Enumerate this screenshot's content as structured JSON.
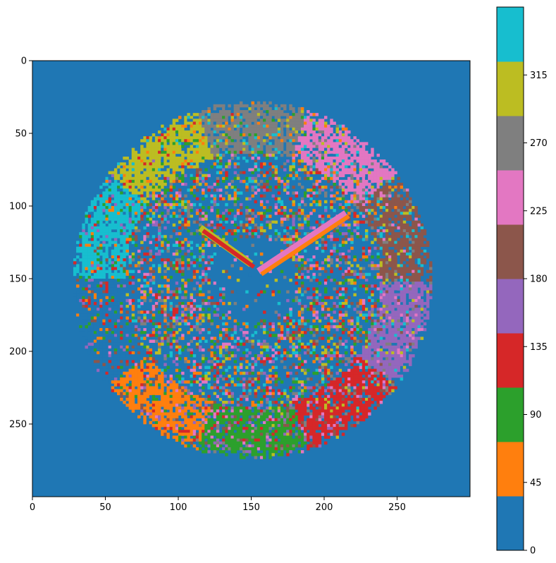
{
  "chart_data": {
    "type": "heatmap",
    "title": "",
    "xlabel": "",
    "ylabel": "",
    "xlim": [
      0,
      300
    ],
    "ylim": [
      300,
      0
    ],
    "x_ticks": [
      0,
      50,
      100,
      150,
      200,
      250
    ],
    "y_ticks": [
      0,
      50,
      100,
      150,
      200,
      250
    ],
    "grid": false,
    "image_description_values": "gradient-orientation map of a circular clock face (0-360 degrees)",
    "colorbar": {
      "range": [
        0,
        360
      ],
      "ticks": [
        0,
        45,
        90,
        135,
        180,
        225,
        270,
        315
      ],
      "bins": [
        {
          "from": 0,
          "to": 36,
          "color": "#1f77b4"
        },
        {
          "from": 36,
          "to": 72,
          "color": "#ff7f0e"
        },
        {
          "from": 72,
          "to": 108,
          "color": "#2ca02c"
        },
        {
          "from": 108,
          "to": 144,
          "color": "#d62728"
        },
        {
          "from": 144,
          "to": 180,
          "color": "#9467bd"
        },
        {
          "from": 180,
          "to": 216,
          "color": "#8c564b"
        },
        {
          "from": 216,
          "to": 252,
          "color": "#e377c2"
        },
        {
          "from": 252,
          "to": 288,
          "color": "#7f7f7f"
        },
        {
          "from": 288,
          "to": 324,
          "color": "#bcbd22"
        },
        {
          "from": 324,
          "to": 360,
          "color": "#17becf"
        }
      ]
    },
    "background_color": "#1f77b4"
  }
}
